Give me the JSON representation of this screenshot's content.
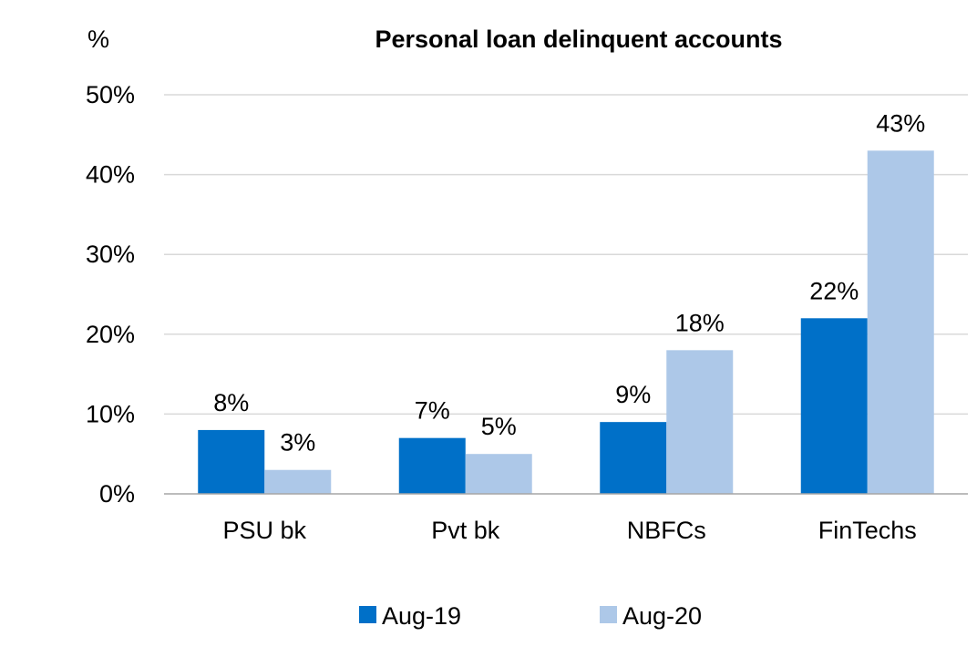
{
  "chart_data": {
    "type": "bar",
    "title": "Personal loan delinquent accounts",
    "unit_label": "%",
    "categories": [
      "PSU bk",
      "Pvt bk",
      "NBFCs",
      "FinTechs"
    ],
    "series": [
      {
        "name": "Aug-19",
        "color": "#0070c8",
        "values": [
          8,
          7,
          9,
          22
        ],
        "labels": [
          "8%",
          "7%",
          "9%",
          "22%"
        ]
      },
      {
        "name": "Aug-20",
        "color": "#adc8e8",
        "values": [
          3,
          5,
          18,
          43
        ],
        "labels": [
          "3%",
          "5%",
          "18%",
          "43%"
        ]
      }
    ],
    "ylim": [
      0,
      50
    ],
    "yticks": [
      0,
      10,
      20,
      30,
      40,
      50
    ],
    "ytick_labels": [
      "0%",
      "10%",
      "20%",
      "30%",
      "40%",
      "50%"
    ],
    "grid": true,
    "legend_position": "bottom"
  }
}
